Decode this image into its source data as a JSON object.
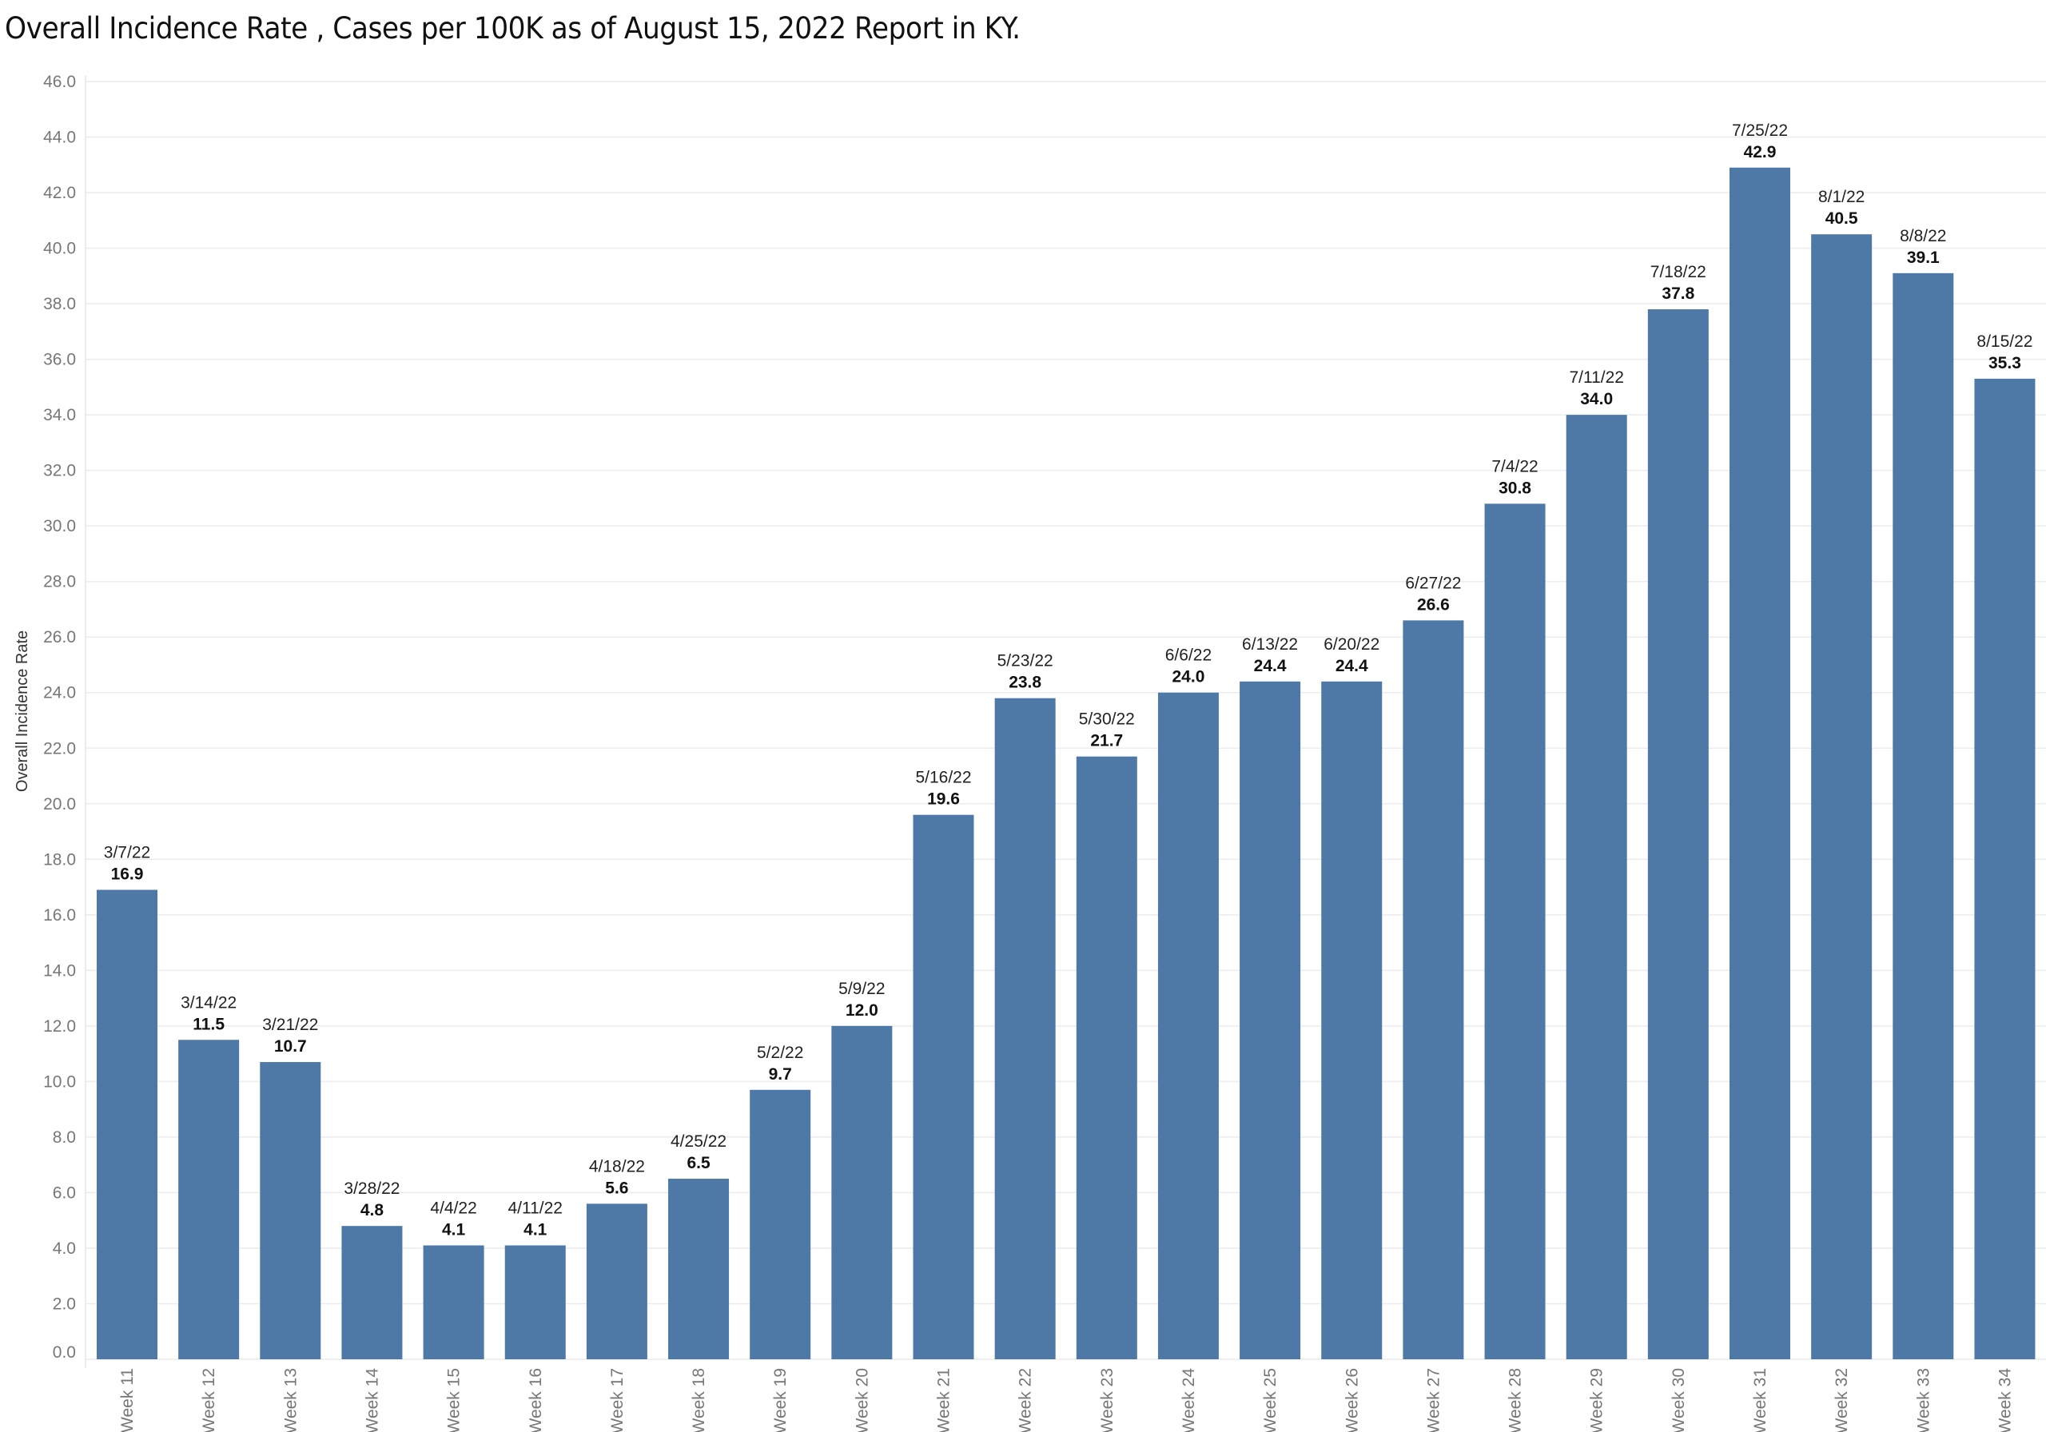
{
  "chart_data": {
    "type": "bar",
    "title": "Overall Incidence Rate , Cases per 100K as of August 15, 2022 Report in KY.",
    "xlabel": "",
    "ylabel": "Overall Incidence Rate",
    "ylim": [
      0,
      46
    ],
    "ytick_step": 2,
    "ytick_format": "0.0",
    "grid": true,
    "legend": "none",
    "bar_color": "#4e79a7",
    "categories": [
      "Week 11",
      "Week 12",
      "Week 13",
      "Week 14",
      "Week 15",
      "Week 16",
      "Week 17",
      "Week 18",
      "Week 19",
      "Week 20",
      "Week 21",
      "Week 22",
      "Week 23",
      "Week 24",
      "Week 25",
      "Week 26",
      "Week 27",
      "Week 28",
      "Week 29",
      "Week 30",
      "Week 31",
      "Week 32",
      "Week 33",
      "Week 34"
    ],
    "dates": [
      "3/7/22",
      "3/14/22",
      "3/21/22",
      "3/28/22",
      "4/4/22",
      "4/11/22",
      "4/18/22",
      "4/25/22",
      "5/2/22",
      "5/9/22",
      "5/16/22",
      "5/23/22",
      "5/30/22",
      "6/6/22",
      "6/13/22",
      "6/20/22",
      "6/27/22",
      "7/4/22",
      "7/11/22",
      "7/18/22",
      "7/25/22",
      "8/1/22",
      "8/8/22",
      "8/15/22"
    ],
    "values": [
      16.9,
      11.5,
      10.7,
      4.8,
      4.1,
      4.1,
      5.6,
      6.5,
      9.7,
      12.0,
      19.6,
      23.8,
      21.7,
      24.0,
      24.4,
      24.4,
      26.6,
      30.8,
      34.0,
      37.8,
      42.9,
      40.5,
      39.1,
      35.3
    ]
  }
}
